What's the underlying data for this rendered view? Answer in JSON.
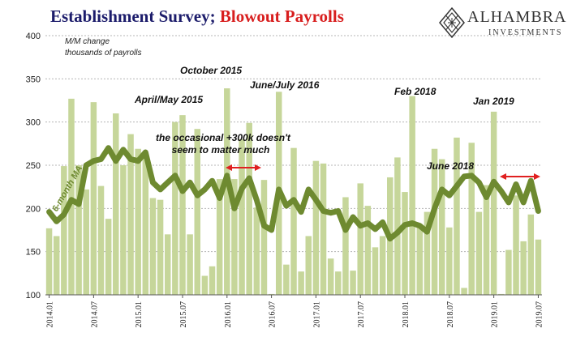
{
  "header": {
    "title_part1": "Establishment Survey;",
    "title_part2": "Blowout Payrolls",
    "subtitle_line1": "M/M change",
    "subtitle_line2": "thousands of payrolls"
  },
  "logo": {
    "name": "ALHAMBRA",
    "sub": "INVESTMENTS",
    "icon": "diamond-lattice-icon"
  },
  "annotations": {
    "oct2015": "October 2015",
    "aprmay2015": "April/May 2015",
    "junjul2016": "June/July 2016",
    "feb2018": "Feb 2018",
    "jan2019": "Jan 2019",
    "jun2018": "June 2018",
    "note_line1": "the occasional +300k doesn't",
    "note_line2": "seem to matter much",
    "ma_label": "6-month MA"
  },
  "colors": {
    "bars": "#c6d69a",
    "ma_line": "#6e8a30",
    "arrow": "#e02020",
    "title_blue": "#1c1c6b",
    "title_red": "#d81e1e"
  },
  "chart_data": {
    "type": "bar",
    "ylim": [
      100,
      400
    ],
    "yticks": [
      100,
      150,
      200,
      250,
      300,
      350,
      400
    ],
    "xticks": [
      "2014.01",
      "2014.07",
      "2015.01",
      "2015.07",
      "2016.01",
      "2016.07",
      "2017.01",
      "2017.07",
      "2018.01",
      "2018.07",
      "2019.01",
      "2019.07"
    ],
    "grid": true,
    "start": "2014-01",
    "months": [
      "2014-01",
      "2014-02",
      "2014-03",
      "2014-04",
      "2014-05",
      "2014-06",
      "2014-07",
      "2014-08",
      "2014-09",
      "2014-10",
      "2014-11",
      "2014-12",
      "2015-01",
      "2015-02",
      "2015-03",
      "2015-04",
      "2015-05",
      "2015-06",
      "2015-07",
      "2015-08",
      "2015-09",
      "2015-10",
      "2015-11",
      "2015-12",
      "2016-01",
      "2016-02",
      "2016-03",
      "2016-04",
      "2016-05",
      "2016-06",
      "2016-07",
      "2016-08",
      "2016-09",
      "2016-10",
      "2016-11",
      "2016-12",
      "2017-01",
      "2017-02",
      "2017-03",
      "2017-04",
      "2017-05",
      "2017-06",
      "2017-07",
      "2017-08",
      "2017-09",
      "2017-10",
      "2017-11",
      "2017-12",
      "2018-01",
      "2018-02",
      "2018-03",
      "2018-04",
      "2018-05",
      "2018-06",
      "2018-07",
      "2018-08",
      "2018-09",
      "2018-10",
      "2018-11",
      "2018-12",
      "2019-01",
      "2019-02",
      "2019-03",
      "2019-04",
      "2019-05",
      "2019-06",
      "2019-07"
    ],
    "series": [
      {
        "name": "M/M change",
        "values": [
          177,
          168,
          249,
          327,
          250,
          222,
          323,
          226,
          188,
          310,
          250,
          286,
          269,
          259,
          212,
          210,
          170,
          300,
          308,
          170,
          292,
          122,
          133,
          234,
          339,
          234,
          280,
          299,
          201,
          233,
          101,
          335,
          135,
          270,
          127,
          168,
          255,
          252,
          142,
          127,
          213,
          128,
          229,
          203,
          155,
          168,
          236,
          259,
          219,
          330,
          182,
          196,
          269,
          257,
          178,
          282,
          108,
          276,
          196,
          227,
          312,
          101,
          152,
          215,
          162,
          193,
          164
        ]
      },
      {
        "name": "6-month MA",
        "values": [
          196,
          185,
          193,
          210,
          205,
          250,
          255,
          257,
          270,
          255,
          268,
          257,
          255,
          265,
          230,
          222,
          230,
          238,
          220,
          230,
          215,
          222,
          232,
          212,
          238,
          200,
          223,
          235,
          210,
          180,
          175,
          222,
          203,
          210,
          196,
          222,
          210,
          197,
          195,
          197,
          175,
          190,
          180,
          183,
          176,
          184,
          165,
          172,
          181,
          183,
          180,
          173,
          200,
          222,
          215,
          226,
          237,
          238,
          230,
          213,
          231,
          220,
          207,
          228,
          207,
          232,
          197
        ]
      }
    ]
  }
}
